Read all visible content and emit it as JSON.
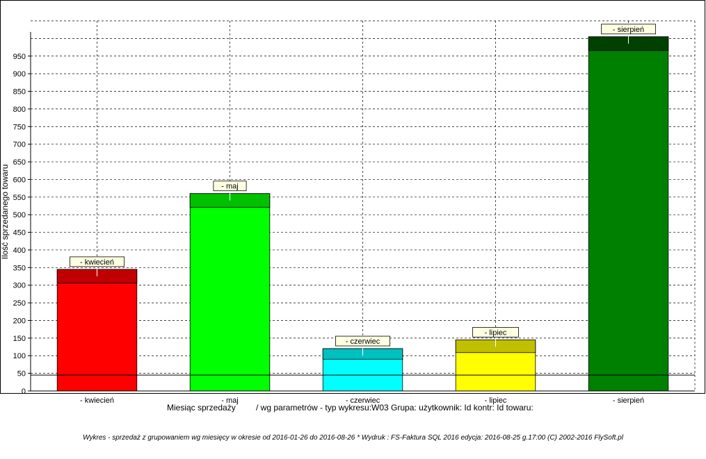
{
  "chart_data": {
    "type": "bar",
    "categories": [
      " -  kwiecień",
      " -  maj",
      " -  czerwiec",
      " -  lipiec",
      " -  sierpień"
    ],
    "tag_labels": [
      "-  kwiecień",
      "-  maj",
      "-  czerwiec",
      "-  lipiec",
      "-  sierpień"
    ],
    "values": [
      345,
      560,
      120,
      145,
      1005
    ],
    "colors": [
      "#ff0000",
      "#00ff00",
      "#00ffff",
      "#ffff00",
      "#008000"
    ],
    "cap_colors": [
      "#c00000",
      "#00c000",
      "#00c0c0",
      "#c0c000",
      "#004000"
    ],
    "ylabel": "Ilość sprzedanego towaru",
    "xlabel": "Miesiąc sprzedaży",
    "xlabel_extra": "/ wg parametrów - typ wykresu:W03 Grupa:  użytkownik:  Id kontr:  Id towaru:",
    "yticks": [
      "0",
      "50",
      "100",
      "150",
      "200",
      "250",
      "300",
      "350",
      "400",
      "450",
      "500",
      "550",
      "600",
      "650",
      "700",
      "750",
      "800",
      "850",
      "900",
      "950"
    ],
    "ylim": [
      0,
      1050
    ],
    "reference_line": 45,
    "grid": true
  },
  "footer": "Wykres - sprzedaż z grupowaniem wg miesięcy w okresie od 2016-01-26 do 2016-08-26      *    Wydruk : FS-Faktura SQL 2016  edycja: 2016-08-25  g.17:00       (C) 2002-2016  FlySoft.pl"
}
